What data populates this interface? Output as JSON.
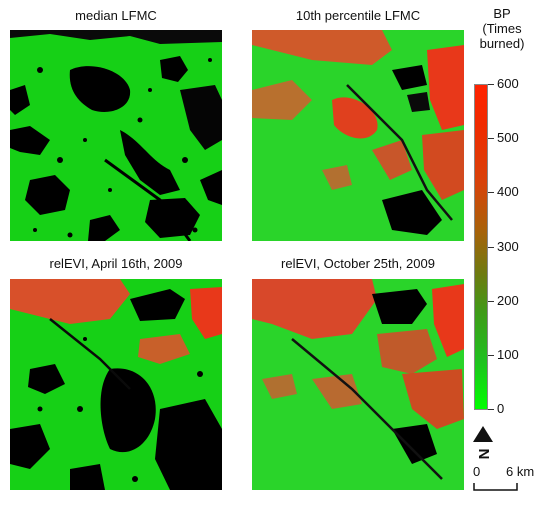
{
  "panels": [
    {
      "title": "median LFMC"
    },
    {
      "title": "10th percentile LFMC"
    },
    {
      "title": "relEVI, April 16th, 2009"
    },
    {
      "title": "relEVI, October 25th, 2009"
    }
  ],
  "legend": {
    "title_line1": "BP",
    "title_line2": "(Times",
    "title_line3": "burned)",
    "ticks": [
      "600",
      "500",
      "400",
      "300",
      "200",
      "100",
      "0"
    ],
    "min_color": "#00ff00",
    "max_color": "#ff2200"
  },
  "north_arrow": {
    "label": "N"
  },
  "scale_bar": {
    "start_label": "0",
    "end_label": "6 km"
  },
  "colors": {
    "vegetation": "#1ad01a",
    "nodata": "#000000",
    "high_burn": "#e8401e"
  }
}
